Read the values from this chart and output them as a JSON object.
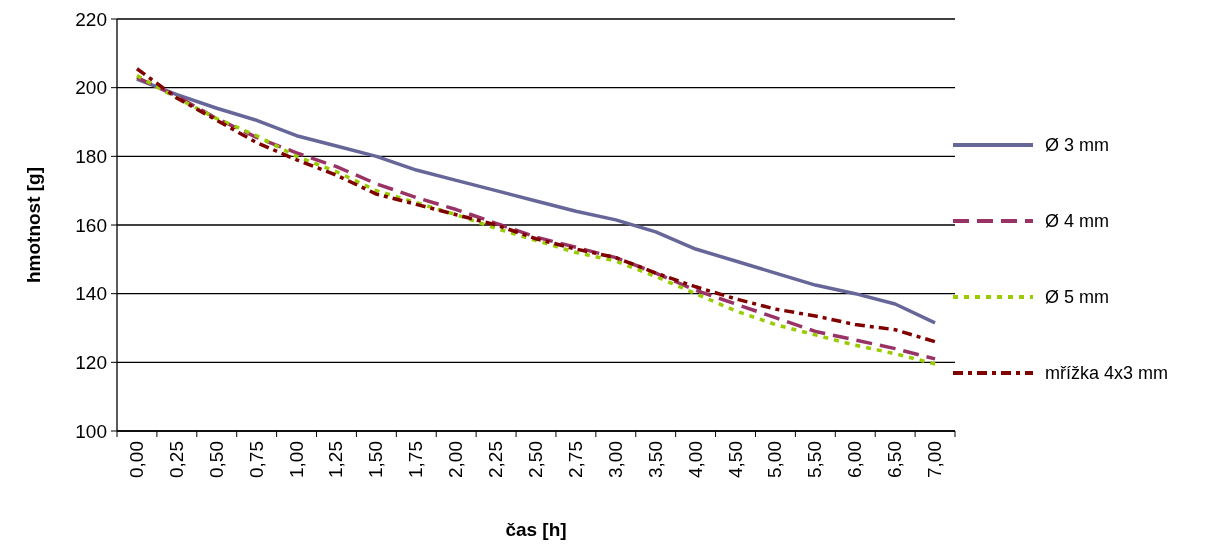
{
  "chart_data": {
    "type": "line",
    "xlabel": "čas [h]",
    "ylabel": "hmotnost [g]",
    "categories": [
      "0,00",
      "0,25",
      "0,50",
      "0,75",
      "1,00",
      "1,25",
      "1,50",
      "1,75",
      "2,00",
      "2,25",
      "2,50",
      "2,75",
      "3,00",
      "3,50",
      "4,00",
      "4,50",
      "5,00",
      "5,50",
      "6,00",
      "6,50",
      "7,00"
    ],
    "ylim": [
      100,
      220
    ],
    "yticks": [
      100,
      120,
      140,
      160,
      180,
      200,
      220
    ],
    "grid": "y",
    "legend": "right",
    "series": [
      {
        "name": "Ø 3 mm",
        "color": "#666699",
        "line_style": "solid",
        "values": [
          202.5,
          198,
          194,
          190.5,
          186,
          183,
          180,
          176,
          173,
          170,
          167,
          164,
          161.5,
          158,
          153,
          149.5,
          146,
          142.5,
          140,
          137,
          131.5
        ]
      },
      {
        "name": "Ø 4 mm",
        "color": "#993366",
        "line_style": "dashed",
        "values": [
          203,
          197.5,
          191,
          185.5,
          181,
          177,
          172,
          168,
          164.5,
          160.5,
          156.5,
          153.5,
          150.5,
          146,
          141,
          137,
          133,
          129,
          126.5,
          124,
          121
        ]
      },
      {
        "name": "Ø 5 mm",
        "color": "#99cc00",
        "line_style": "dotted",
        "values": [
          203.5,
          197,
          191,
          186,
          180,
          175.5,
          170,
          166.5,
          163,
          159,
          155.5,
          152,
          149.5,
          145,
          140,
          135,
          131,
          128,
          125,
          122.5,
          119.5
        ]
      },
      {
        "name": "mřížka 4x3 mm",
        "color": "#800000",
        "line_style": "dashdot",
        "values": [
          205.5,
          197,
          190.5,
          184,
          179,
          174.5,
          169,
          166,
          163,
          160,
          156,
          153,
          150.5,
          146,
          142,
          138.5,
          135.5,
          133.5,
          131,
          129.5,
          126
        ]
      }
    ]
  }
}
